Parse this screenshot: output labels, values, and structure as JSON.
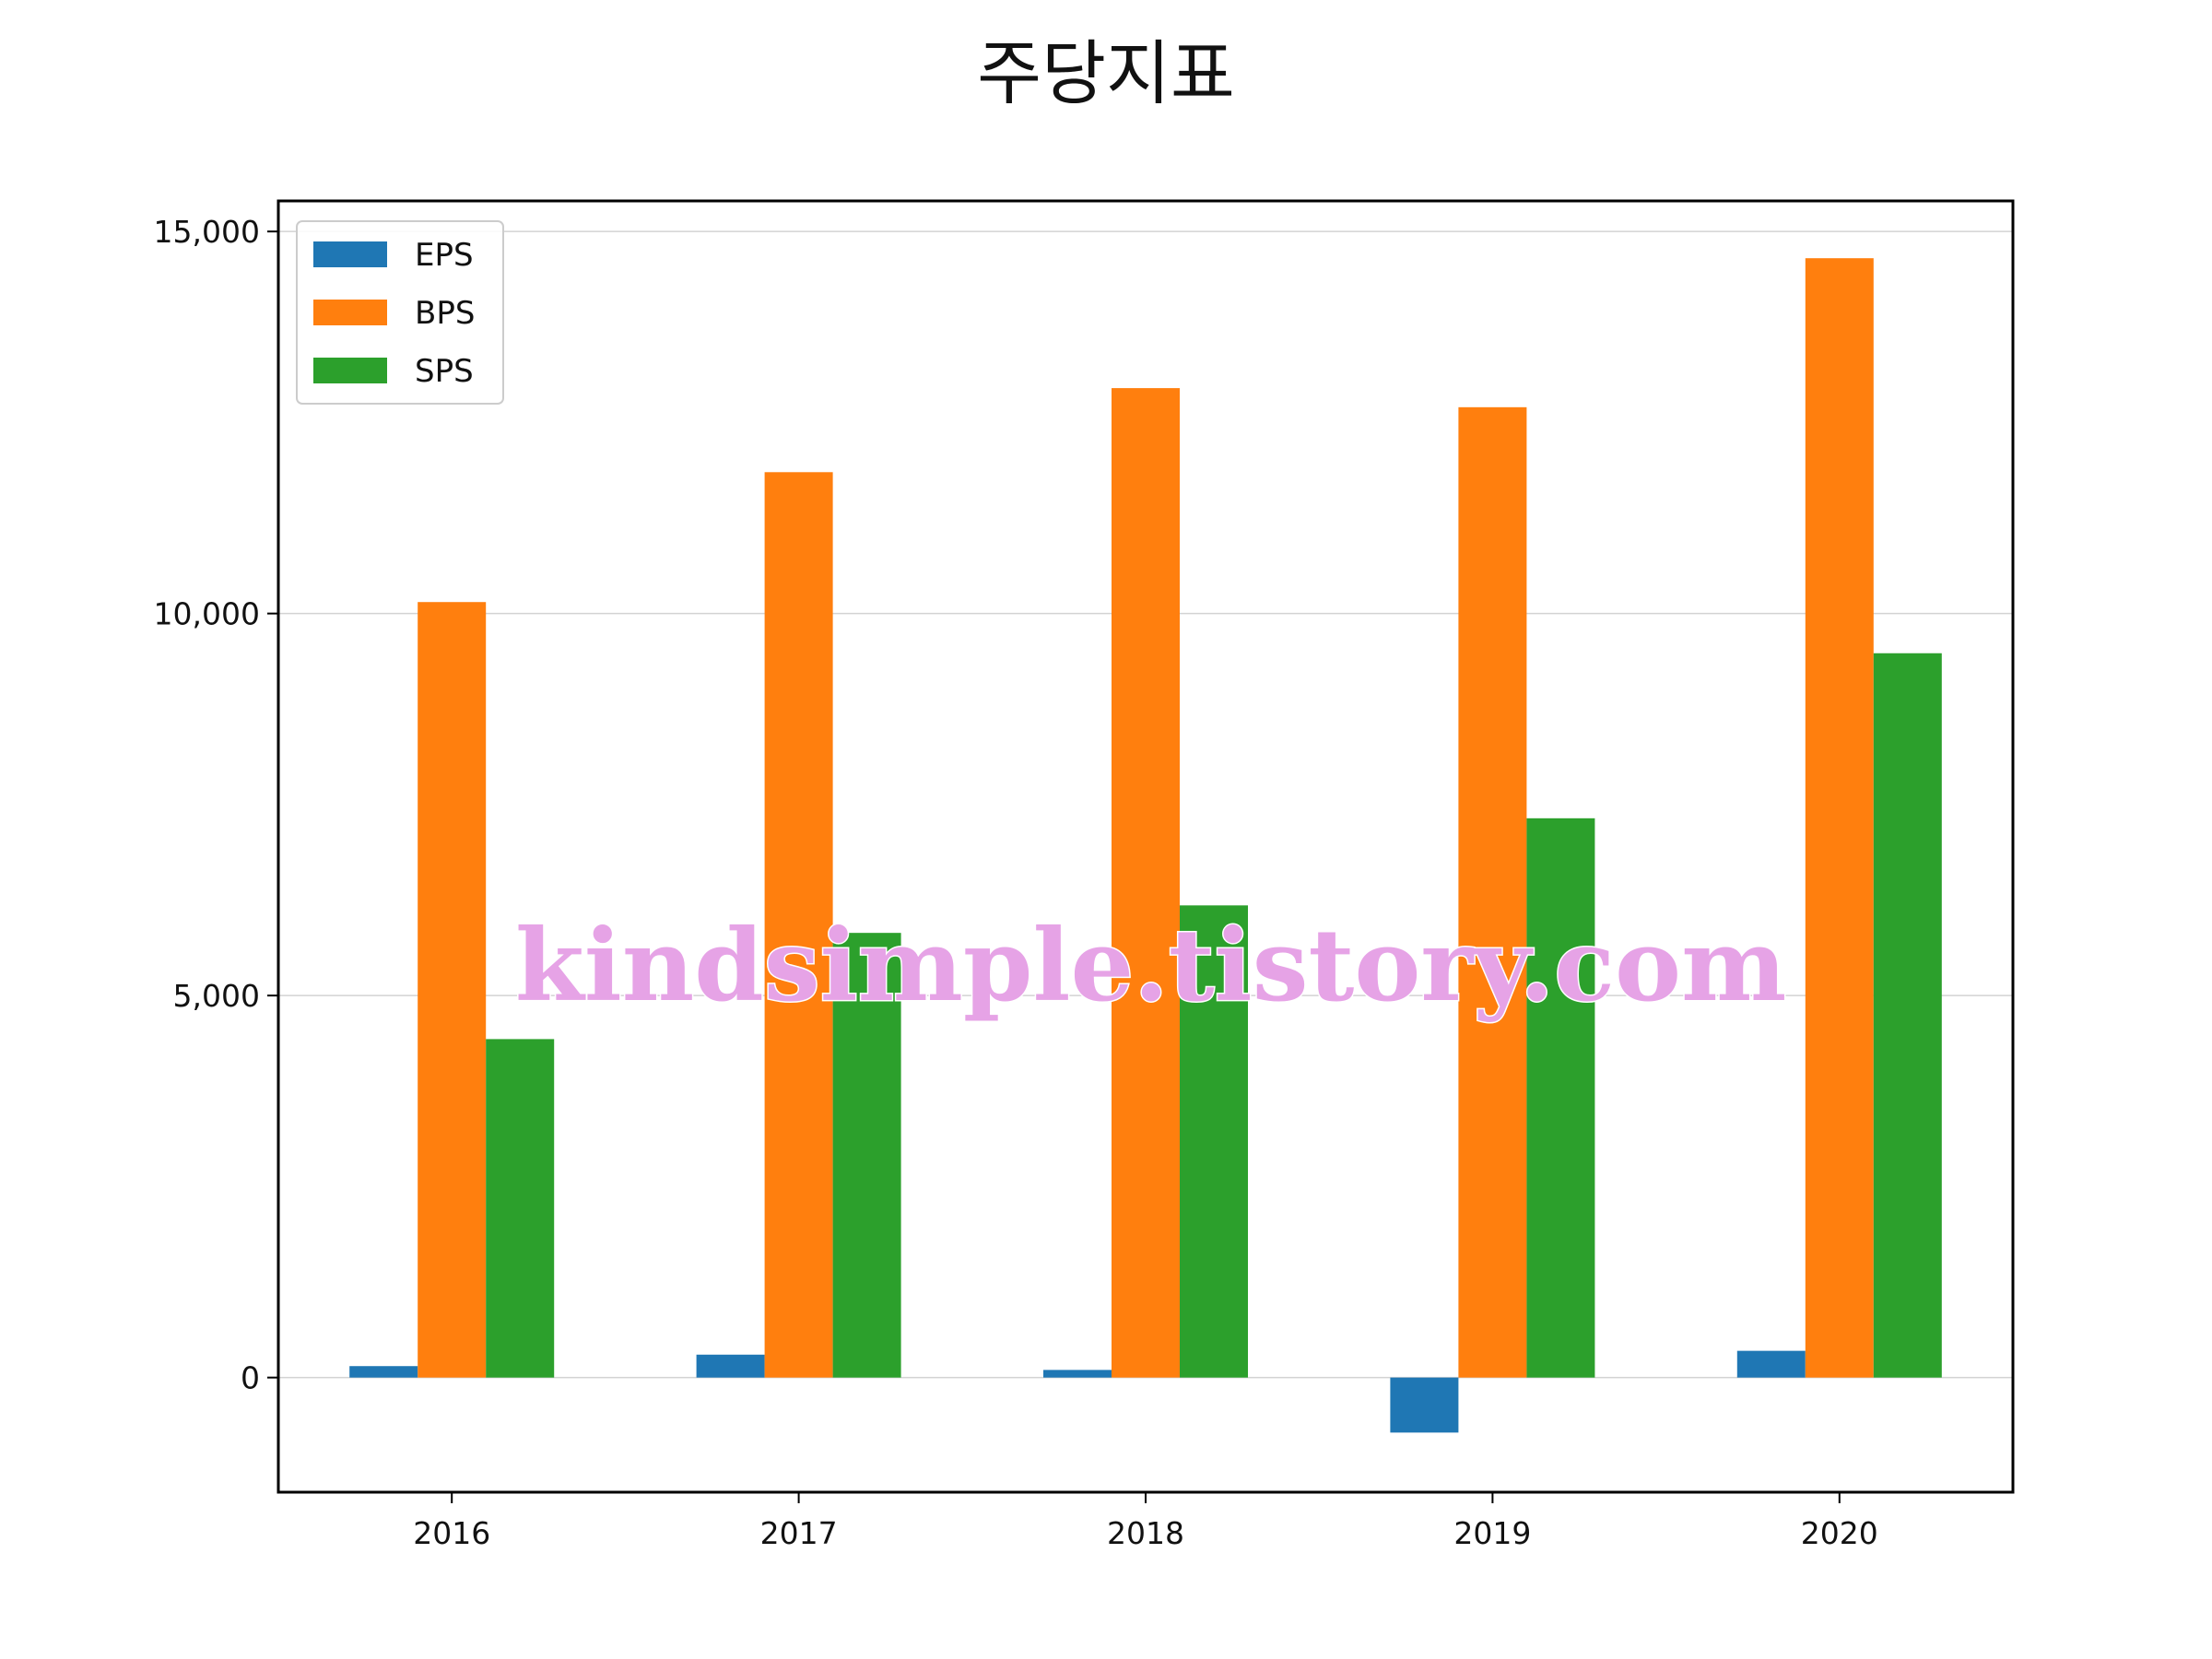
{
  "chart_data": {
    "type": "bar",
    "title": "주당지표",
    "xlabel": "",
    "ylabel": "",
    "categories": [
      "2016",
      "2017",
      "2018",
      "2019",
      "2020"
    ],
    "series": [
      {
        "name": "EPS",
        "color": "#1f77b4",
        "values": [
          150,
          300,
          100,
          -720,
          350
        ]
      },
      {
        "name": "BPS",
        "color": "#ff7f0e",
        "values": [
          10150,
          11850,
          12950,
          12700,
          14650
        ]
      },
      {
        "name": "SPS",
        "color": "#2ca02c",
        "values": [
          4430,
          5820,
          6180,
          7320,
          9480
        ]
      }
    ],
    "ylim": [
      -1500,
      15400
    ],
    "yticks": [
      0,
      5000,
      10000,
      15000
    ],
    "ytick_labels": [
      "0",
      "5,000",
      "10,000",
      "15,000"
    ],
    "grid": "horizontal",
    "legend_position": "upper-left"
  },
  "watermark": "kindsimple.tistory.com"
}
